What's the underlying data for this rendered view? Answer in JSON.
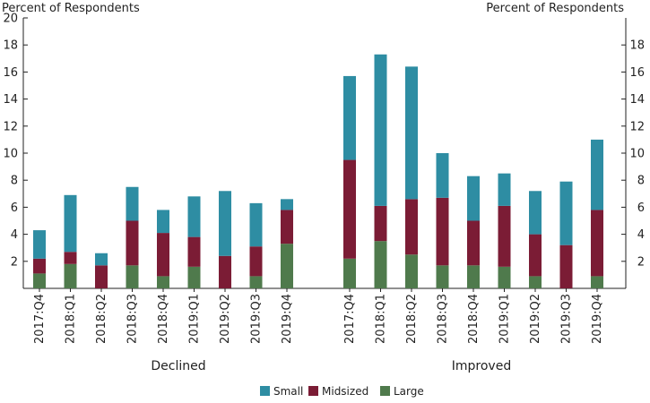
{
  "chart_data": {
    "type": "bar",
    "stacked": true,
    "y_unit_left": "Percent of Respondents",
    "y_unit_right": "Percent of Respondents",
    "ylim": [
      0,
      20
    ],
    "y_ticks": [
      2,
      4,
      6,
      8,
      10,
      12,
      14,
      16,
      18,
      20
    ],
    "y_ticks_right": [
      2,
      4,
      6,
      8,
      10,
      12,
      14,
      16,
      18
    ],
    "grid": false,
    "legend_position": "bottom",
    "series": [
      {
        "name": "Small",
        "color": "#2e8da3"
      },
      {
        "name": "Midsized",
        "color": "#7b1c35"
      },
      {
        "name": "Large",
        "color": "#4f7a4c"
      }
    ],
    "groups": [
      {
        "label": "Declined",
        "categories": [
          "2017:Q4",
          "2018:Q1",
          "2018:Q2",
          "2018:Q3",
          "2018:Q4",
          "2019:Q1",
          "2019:Q2",
          "2019:Q3",
          "2019:Q4"
        ],
        "values": {
          "Large": [
            1.1,
            1.8,
            0.0,
            1.7,
            0.9,
            1.6,
            0.0,
            0.9,
            3.3
          ],
          "Midsized": [
            1.1,
            0.9,
            1.7,
            3.3,
            3.2,
            2.2,
            2.4,
            2.2,
            2.5
          ],
          "Small": [
            2.1,
            4.2,
            0.9,
            2.5,
            1.7,
            3.0,
            4.8,
            3.2,
            0.8
          ]
        }
      },
      {
        "label": "Improved",
        "categories": [
          "2017:Q4",
          "2018:Q1",
          "2018:Q2",
          "2018:Q3",
          "2018:Q4",
          "2019:Q1",
          "2019:Q2",
          "2019:Q3",
          "2019:Q4"
        ],
        "values": {
          "Large": [
            2.2,
            3.5,
            2.5,
            1.7,
            1.7,
            1.6,
            0.9,
            0.0,
            0.9
          ],
          "Midsized": [
            7.3,
            2.6,
            4.1,
            5.0,
            3.3,
            4.5,
            3.1,
            3.2,
            4.9
          ],
          "Small": [
            6.2,
            11.2,
            9.8,
            3.3,
            3.3,
            2.4,
            3.2,
            4.7,
            5.2
          ]
        }
      }
    ]
  }
}
